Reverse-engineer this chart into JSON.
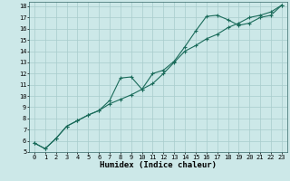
{
  "title": "",
  "xlabel": "Humidex (Indice chaleur)",
  "bg_color": "#cce8e8",
  "line_color": "#1a6b5a",
  "grid_color": "#a8cccc",
  "xlim": [
    -0.5,
    23.5
  ],
  "ylim": [
    5,
    18.4
  ],
  "xticks": [
    0,
    1,
    2,
    3,
    4,
    5,
    6,
    7,
    8,
    9,
    10,
    11,
    12,
    13,
    14,
    15,
    16,
    17,
    18,
    19,
    20,
    21,
    22,
    23
  ],
  "yticks": [
    5,
    6,
    7,
    8,
    9,
    10,
    11,
    12,
    13,
    14,
    15,
    16,
    17,
    18
  ],
  "series1_x": [
    0,
    1,
    2,
    3,
    4,
    5,
    6,
    7,
    8,
    9,
    10,
    11,
    12,
    13,
    14,
    15,
    16,
    17,
    18,
    19,
    20,
    21,
    22,
    23
  ],
  "series1_y": [
    5.8,
    5.3,
    6.2,
    7.3,
    7.8,
    8.3,
    8.7,
    9.3,
    9.7,
    10.1,
    10.6,
    11.1,
    12.0,
    13.0,
    14.0,
    14.5,
    15.1,
    15.5,
    16.1,
    16.5,
    17.0,
    17.2,
    17.5,
    18.1
  ],
  "series2_x": [
    0,
    1,
    2,
    3,
    4,
    5,
    6,
    7,
    8,
    9,
    10,
    11,
    12,
    13,
    14,
    15,
    16,
    17,
    18,
    19,
    20,
    21,
    22,
    23
  ],
  "series2_y": [
    5.8,
    5.3,
    6.2,
    7.3,
    7.8,
    8.3,
    8.7,
    9.6,
    11.6,
    11.7,
    10.6,
    12.0,
    12.3,
    13.1,
    14.4,
    15.8,
    17.1,
    17.2,
    16.8,
    16.3,
    16.5,
    17.0,
    17.2,
    18.1
  ],
  "font_family": "monospace",
  "tick_fontsize": 5.0,
  "xlabel_fontsize": 6.5,
  "marker_size": 2.5,
  "linewidth": 0.8
}
